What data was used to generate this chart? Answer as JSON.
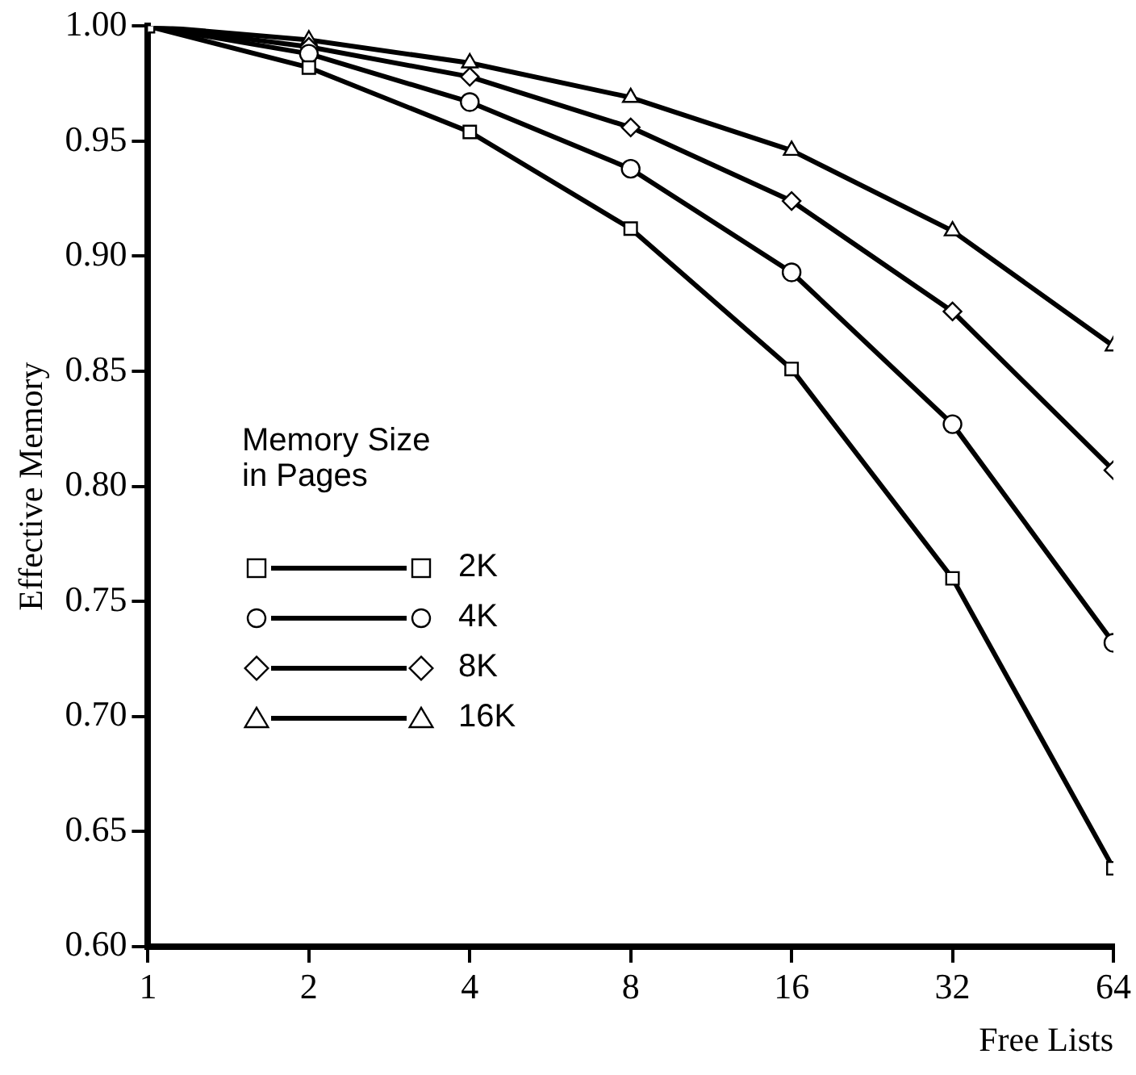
{
  "chart_data": {
    "type": "line",
    "xlabel": "Free Lists",
    "ylabel": "Effective Memory",
    "legend_title": "Memory Size\nin Pages",
    "x": [
      1,
      2,
      4,
      8,
      16,
      32,
      64
    ],
    "log": "x",
    "xlim": [
      1,
      64
    ],
    "xticks": [
      1,
      2,
      4,
      8,
      16,
      32,
      64
    ],
    "ylim": [
      0.6,
      1.0
    ],
    "yticks": [
      {
        "value": 0.6,
        "label": "0.60"
      },
      {
        "value": 0.65,
        "label": "0.65"
      },
      {
        "value": 0.7,
        "label": "0.70"
      },
      {
        "value": 0.75,
        "label": "0.75"
      },
      {
        "value": 0.8,
        "label": "0.80"
      },
      {
        "value": 0.85,
        "label": "0.85"
      },
      {
        "value": 0.9,
        "label": "0.90"
      },
      {
        "value": 0.95,
        "label": "0.95"
      },
      {
        "value": 1.0,
        "label": "1.00"
      }
    ],
    "grid": false,
    "legend": "center left",
    "line_style": "solid",
    "series": [
      {
        "name": "2K",
        "color": "#000000",
        "marker": "square",
        "values": [
          1.0,
          0.982,
          0.954,
          0.912,
          0.851,
          0.76,
          0.634
        ]
      },
      {
        "name": "4K",
        "color": "#000000",
        "marker": "circle",
        "values": [
          1.0,
          0.988,
          0.967,
          0.938,
          0.893,
          0.827,
          0.732
        ]
      },
      {
        "name": "8K",
        "color": "#000000",
        "marker": "diamond",
        "values": [
          1.0,
          0.991,
          0.978,
          0.956,
          0.924,
          0.876,
          0.807
        ]
      },
      {
        "name": "16K",
        "color": "#000000",
        "marker": "triangle",
        "values": [
          1.0,
          0.994,
          0.984,
          0.969,
          0.946,
          0.911,
          0.861
        ]
      }
    ]
  }
}
